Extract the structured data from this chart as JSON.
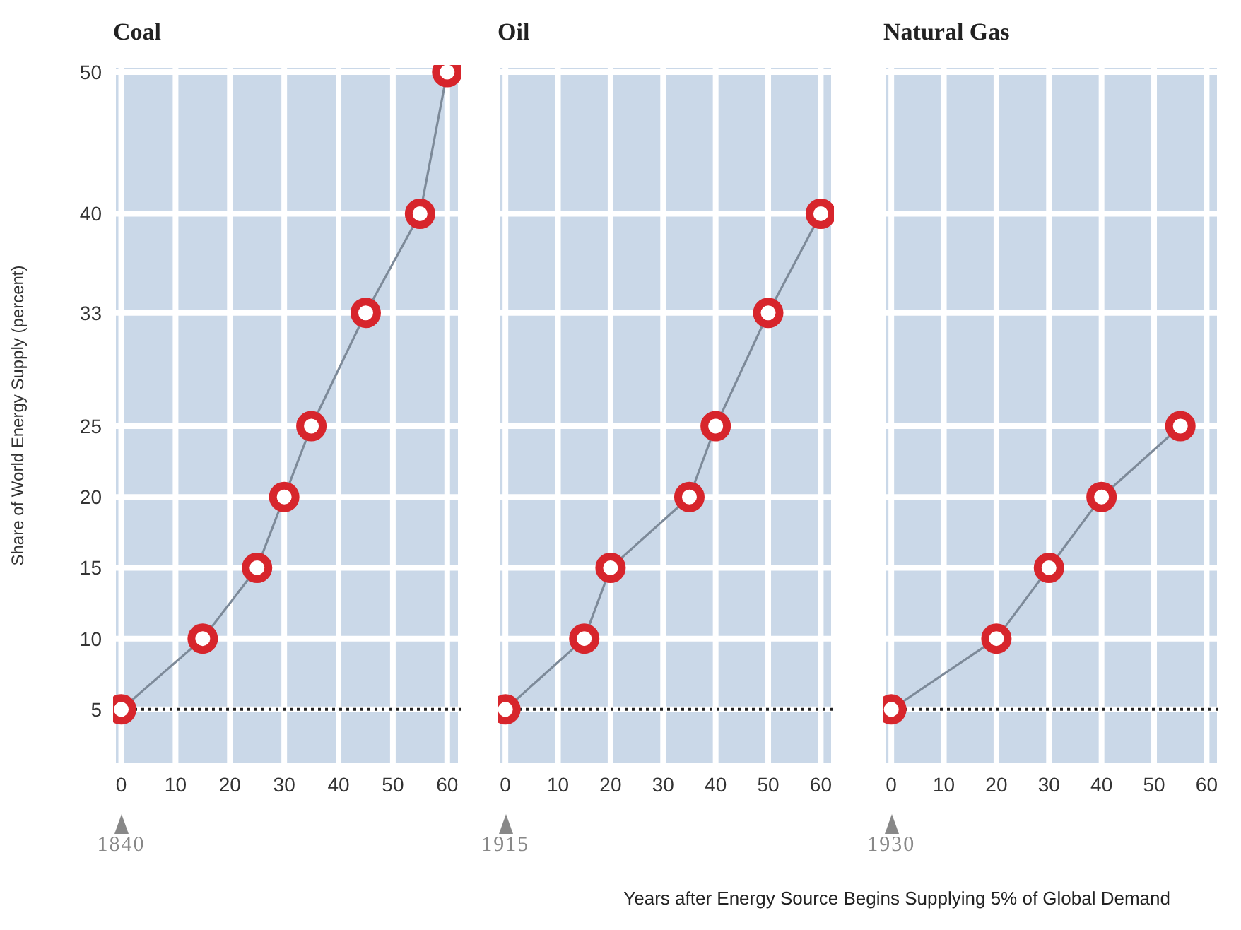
{
  "chart_data": [
    {
      "type": "line",
      "title": "Coal",
      "ylabel": "Share of World Energy Supply (percent)",
      "x": [
        0,
        15,
        25,
        30,
        35,
        45,
        55,
        60
      ],
      "series": [
        {
          "color": "#d7252c",
          "values": [
            5,
            10,
            15,
            20,
            25,
            33,
            40,
            50
          ]
        }
      ],
      "xlim": [
        -1.5,
        62.5
      ],
      "xticks": [
        0,
        10,
        20,
        30,
        40,
        50,
        60
      ],
      "ylim": [
        1,
        50.5
      ],
      "yticks": [
        5,
        10,
        15,
        20,
        25,
        33,
        40,
        50
      ],
      "grid": true,
      "marker": "circle",
      "ref_lines": [
        {
          "axis": "y",
          "value": 5,
          "line_style": "dotted",
          "color": "#222222"
        }
      ],
      "annotations": [
        "1840"
      ]
    },
    {
      "type": "line",
      "title": "Oil",
      "x": [
        0,
        15,
        20,
        35,
        40,
        50,
        60
      ],
      "series": [
        {
          "color": "#d7252c",
          "values": [
            5,
            10,
            15,
            20,
            25,
            33,
            40
          ]
        }
      ],
      "xlim": [
        -1.5,
        62.5
      ],
      "xticks": [
        0,
        10,
        20,
        30,
        40,
        50,
        60
      ],
      "ylim": [
        1,
        50.5
      ],
      "yticks": [
        5,
        10,
        15,
        20,
        25,
        33,
        40,
        50
      ],
      "tick_labels": "x",
      "grid": true,
      "marker": "circle",
      "ref_lines": [
        {
          "axis": "y",
          "value": 5,
          "line_style": "dotted",
          "color": "#222222"
        }
      ],
      "annotations": [
        "1915"
      ]
    },
    {
      "type": "line",
      "title": "Natural Gas",
      "xlabel": "Years after Energy Source Begins Supplying 5% of Global Demand",
      "x": [
        0,
        20,
        30,
        40,
        55
      ],
      "series": [
        {
          "color": "#d7252c",
          "values": [
            5,
            10,
            15,
            20,
            25
          ]
        }
      ],
      "xlim": [
        -1.5,
        62.5
      ],
      "xticks": [
        0,
        10,
        20,
        30,
        40,
        50,
        60
      ],
      "ylim": [
        1,
        50.5
      ],
      "yticks": [
        5,
        10,
        15,
        20,
        25,
        33,
        40,
        50
      ],
      "tick_labels": "x",
      "grid": true,
      "marker": "circle",
      "ref_lines": [
        {
          "axis": "y",
          "value": 5,
          "line_style": "dotted",
          "color": "#222222"
        }
      ],
      "annotations": [
        "1930"
      ]
    }
  ]
}
